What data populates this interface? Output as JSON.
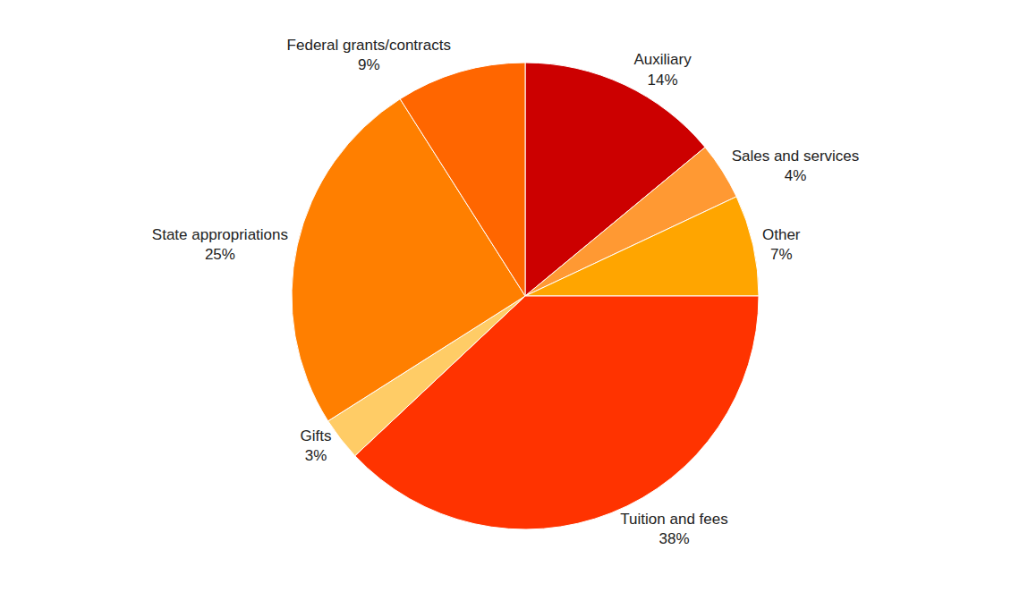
{
  "chart_data": {
    "type": "pie",
    "categories": [
      "Auxiliary",
      "Sales and services",
      "Other",
      "Tuition and fees",
      "Gifts",
      "State appropriations",
      "Federal grants/contracts"
    ],
    "values": [
      14,
      4,
      7,
      38,
      3,
      25,
      9
    ],
    "value_labels": [
      "14%",
      "4%",
      "7%",
      "38%",
      "3%",
      "25%",
      "9%"
    ],
    "colors": [
      "#cc0000",
      "#ff9933",
      "#ffa500",
      "#ff3300",
      "#ffcc66",
      "#ff7f00",
      "#ff6600"
    ],
    "data_labels": true
  }
}
